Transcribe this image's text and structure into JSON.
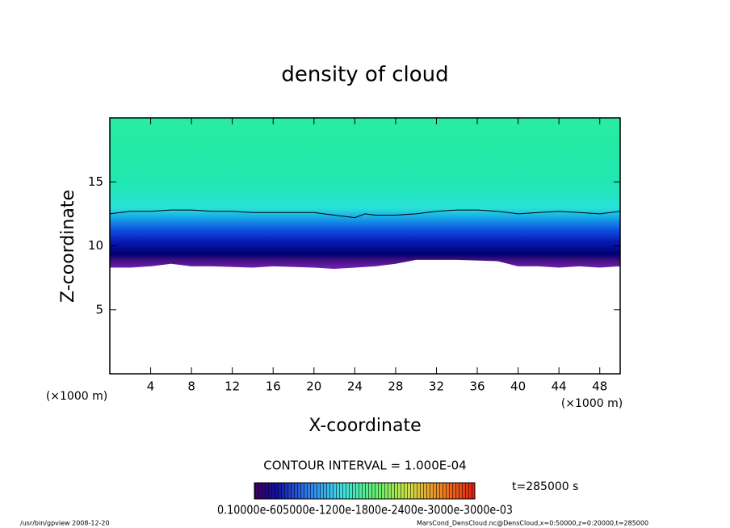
{
  "chart_data": {
    "type": "contour",
    "title": "density of cloud",
    "xlabel": "X-coordinate",
    "ylabel": "Z-coordinate",
    "x_unit_left": "(×1000 m)",
    "x_unit_right": "(×1000 m)",
    "xlim": [
      0,
      50
    ],
    "ylim": [
      0,
      20
    ],
    "xticks": [
      4,
      8,
      12,
      16,
      20,
      24,
      28,
      32,
      36,
      40,
      44,
      48
    ],
    "yticks": [
      5,
      10,
      15
    ],
    "contour_x": [
      0,
      2,
      4,
      6,
      8,
      10,
      12,
      14,
      16,
      18,
      20,
      21,
      22,
      23,
      24,
      25,
      26,
      28,
      30,
      32,
      34,
      36,
      38,
      40,
      42,
      44,
      46,
      48,
      50
    ],
    "contour_z": [
      12.5,
      12.7,
      12.7,
      12.8,
      12.8,
      12.7,
      12.7,
      12.6,
      12.6,
      12.6,
      12.6,
      12.5,
      12.4,
      12.3,
      12.2,
      12.5,
      12.4,
      12.4,
      12.5,
      12.7,
      12.8,
      12.8,
      12.7,
      12.5,
      12.6,
      12.7,
      12.6,
      12.5,
      12.7
    ],
    "base_x": [
      0,
      2,
      4,
      6,
      8,
      10,
      14,
      16,
      20,
      22,
      24,
      26,
      28,
      30,
      34,
      38,
      40,
      42,
      44,
      46,
      48,
      50
    ],
    "base_z": [
      8.3,
      8.3,
      8.4,
      8.6,
      8.4,
      8.4,
      8.3,
      8.4,
      8.3,
      8.2,
      8.3,
      8.4,
      8.6,
      8.9,
      8.9,
      8.8,
      8.4,
      8.4,
      8.3,
      8.4,
      8.3,
      8.4
    ],
    "contour_interval": "CONTOUR INTERVAL = 1.000E-04",
    "time_label": "t=285000 s",
    "colorbar_labels": "0.10000e-605000e-1200e-1800e-2400e-3000e-3000e-03",
    "footer_left": "/usr/bin/gpview   2008-12-20",
    "footer_right": "MarsCond_DensCloud.nc@DensCloud,x=0:50000,z=0:20000,t=285000"
  }
}
